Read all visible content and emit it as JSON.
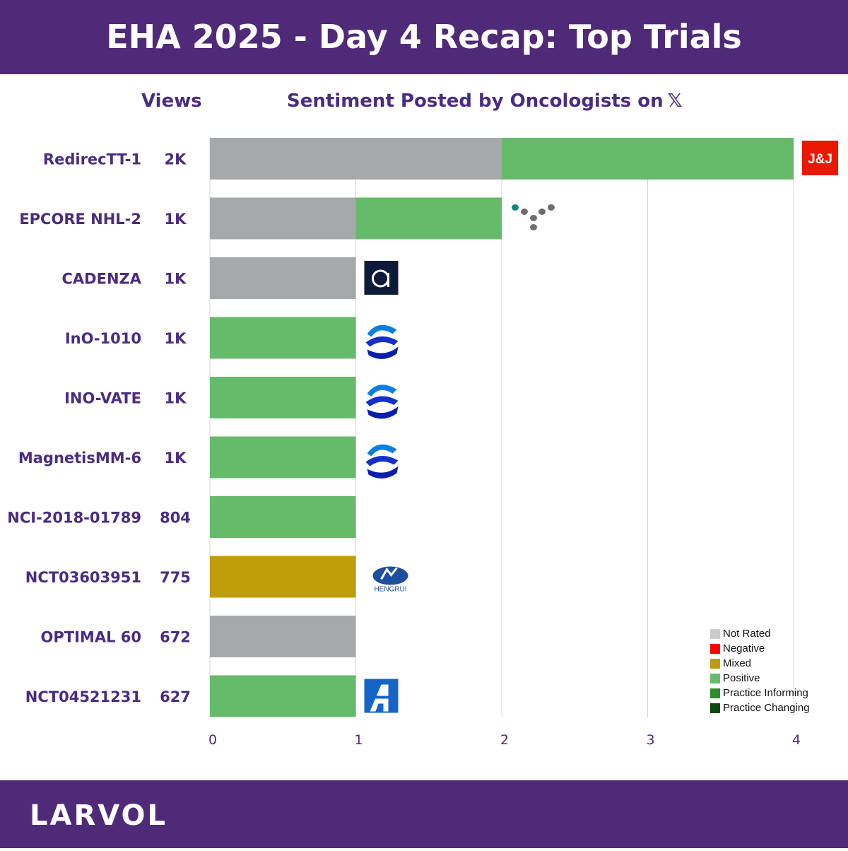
{
  "header": {
    "title": "EHA 2025 - Day 4 Recap: Top Trials"
  },
  "columns": {
    "views": "Views",
    "sentiment": "Sentiment Posted by Oncologists on",
    "sentiment_icon": "𝕏"
  },
  "footer": {
    "brand": "LARVOL"
  },
  "colors": {
    "header_bg": "#4f2a78",
    "not_rated": "#a7a8aa",
    "negative": "#ff0000",
    "mixed": "#bf9d0a",
    "positive": "#66bb6a",
    "practice_informing": "#2e8b2e",
    "practice_changing": "#0b4a0b"
  },
  "legend": [
    {
      "label": "Not Rated",
      "color": "#cccccc"
    },
    {
      "label": "Negative",
      "color": "#ff0000"
    },
    {
      "label": "Mixed",
      "color": "#bf9d0a"
    },
    {
      "label": "Positive",
      "color": "#66bb6a"
    },
    {
      "label": "Practice Informing",
      "color": "#2e8b2e"
    },
    {
      "label": "Practice Changing",
      "color": "#0b4a0b"
    }
  ],
  "chart_data": {
    "type": "bar",
    "orientation": "horizontal",
    "stacked": true,
    "categories": [
      "RedirecTT-1",
      "EPCORE NHL-2",
      "CADENZA",
      "InO-1010",
      "INO-VATE",
      "MagnetisMM-6",
      "NCI-2018-01789",
      "NCT03603951",
      "OPTIMAL 60",
      "NCT04521231"
    ],
    "views": [
      "2K",
      "1K",
      "1K",
      "1K",
      "1K",
      "1K",
      "804",
      "775",
      "672",
      "627"
    ],
    "series": [
      {
        "name": "Not Rated",
        "color": "#a7a8aa",
        "values": [
          2,
          1,
          1,
          0,
          0,
          0,
          0,
          0,
          1,
          0
        ]
      },
      {
        "name": "Negative",
        "color": "#ff0000",
        "values": [
          0,
          0,
          0,
          0,
          0,
          0,
          0,
          0,
          0,
          0
        ]
      },
      {
        "name": "Mixed",
        "color": "#bf9d0a",
        "values": [
          0,
          0,
          0,
          0,
          0,
          0,
          0,
          1,
          0,
          0
        ]
      },
      {
        "name": "Positive",
        "color": "#66bb6a",
        "values": [
          2,
          1,
          0,
          1,
          1,
          1,
          1,
          0,
          0,
          1
        ]
      },
      {
        "name": "Practice Informing",
        "color": "#2e8b2e",
        "values": [
          0,
          0,
          0,
          0,
          0,
          0,
          0,
          0,
          0,
          0
        ]
      },
      {
        "name": "Practice Changing",
        "color": "#0b4a0b",
        "values": [
          0,
          0,
          0,
          0,
          0,
          0,
          0,
          0,
          0,
          0
        ]
      }
    ],
    "sponsor_logos": [
      "jnj",
      "genmab",
      "autolus",
      "pfizer",
      "pfizer",
      "pfizer",
      "",
      "hengrui",
      "",
      "ascentage"
    ],
    "logo_text": {
      "jnj": "J&J",
      "hengrui": "HENGRUI"
    },
    "xticks": [
      0,
      1,
      2,
      3,
      4
    ],
    "xlim": [
      0,
      4
    ],
    "grid": true,
    "legend_position": "bottom-right"
  }
}
